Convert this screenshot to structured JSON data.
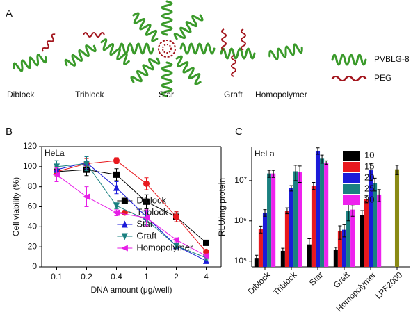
{
  "diagram": {
    "panel": "A",
    "items": [
      "Diblock",
      "Triblock",
      "Star",
      "Graft",
      "Homopolymer"
    ],
    "legend": [
      "PVBLG-8",
      "PEG"
    ]
  },
  "chart_data": [
    {
      "type": "line",
      "panel": "B",
      "annotation": "HeLa",
      "x_label": "DNA amount (μg/well)",
      "y_label": "Cell viability (%)",
      "categories": [
        "0.1",
        "0.2",
        "0.4",
        "1",
        "2",
        "4"
      ],
      "ylim": [
        0,
        120
      ],
      "yticks": [
        0,
        20,
        40,
        60,
        80,
        100,
        120
      ],
      "legend": "lower center",
      "series": [
        {
          "name": "Diblock",
          "color": "#000000",
          "marker": "square",
          "values": [
            95,
            97,
            92,
            65,
            50,
            24
          ],
          "errors": [
            5,
            6,
            6,
            7,
            5,
            2
          ]
        },
        {
          "name": "Triblock",
          "color": "#e8191e",
          "marker": "circle",
          "values": [
            95,
            103,
            106,
            83,
            50,
            15
          ],
          "errors": [
            4,
            5,
            3,
            6,
            5,
            2
          ]
        },
        {
          "name": "Star",
          "color": "#1b1bd9",
          "marker": "triangle-up",
          "values": [
            97,
            104,
            79,
            50,
            21,
            6
          ],
          "errors": [
            5,
            6,
            6,
            5,
            2,
            2
          ]
        },
        {
          "name": "Graft",
          "color": "#1a8080",
          "marker": "triangle-down",
          "values": [
            100,
            103,
            61,
            47,
            21,
            9
          ],
          "errors": [
            6,
            7,
            3,
            5,
            2,
            2
          ]
        },
        {
          "name": "Homopolymer",
          "color": "#e61ee6",
          "marker": "triangle-left",
          "values": [
            92,
            70,
            54,
            49,
            27,
            11
          ],
          "errors": [
            7,
            10,
            3,
            8,
            2,
            2
          ]
        }
      ]
    },
    {
      "type": "bar",
      "panel": "C",
      "annotation": "HeLa",
      "y_label": "RLU/mg protein",
      "log": true,
      "categories": [
        "Diblock",
        "Triblock",
        "Star",
        "Graft",
        "Homopolymer",
        "LPF2000"
      ],
      "ylim": [
        72000,
        67000000
      ],
      "yticks": [
        {
          "value": 100000,
          "label": "10⁵"
        },
        {
          "value": 1000000,
          "label": "10⁶"
        },
        {
          "value": 10000000,
          "label": "10⁷"
        }
      ],
      "legend": "upper right",
      "series": [
        {
          "name": "10",
          "color": "#000000",
          "values": [
            120000,
            180000,
            260000,
            190000,
            1400000,
            null
          ],
          "errors": [
            20000,
            30000,
            100000,
            30000,
            400000,
            null
          ]
        },
        {
          "name": "15",
          "color": "#e8191e",
          "values": [
            620000,
            1800000,
            7500000,
            550000,
            3500000,
            null
          ],
          "errors": [
            120000,
            300000,
            1500000,
            200000,
            700000,
            null
          ]
        },
        {
          "name": "20",
          "color": "#1b1bd9",
          "values": [
            1600000,
            6500000,
            55000000,
            600000,
            18000000,
            null
          ],
          "errors": [
            300000,
            1000000,
            10000000,
            200000,
            8000000,
            null
          ]
        },
        {
          "name": "25",
          "color": "#1a8080",
          "values": [
            15000000,
            17000000,
            35000000,
            1800000,
            8500000,
            null
          ],
          "errors": [
            3000000,
            7000000,
            8000000,
            800000,
            3000000,
            null
          ]
        },
        {
          "name": "30",
          "color": "#ee22ee",
          "values": [
            15000000,
            16000000,
            28000000,
            1900000,
            4500000,
            null
          ],
          "errors": [
            3000000,
            7000000,
            3000000,
            600000,
            1500000,
            null
          ]
        },
        {
          "color": "#8a8a14",
          "values": [
            null,
            null,
            null,
            null,
            null,
            19000000
          ],
          "errors": [
            null,
            null,
            null,
            null,
            null,
            5000000
          ]
        }
      ]
    }
  ]
}
